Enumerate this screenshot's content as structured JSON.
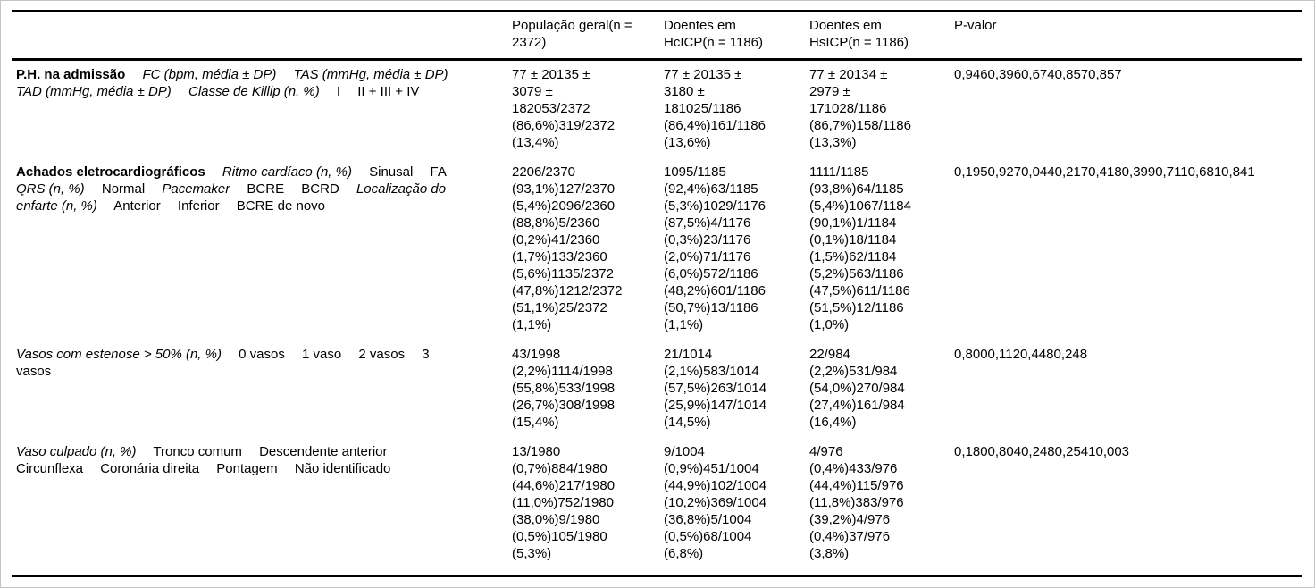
{
  "table": {
    "header": {
      "row_label_column": "",
      "columns": [
        "População geral(n = 2372)",
        "Doentes em HcICP(n = 1186)",
        "Doentes em HsICP(n = 1186)",
        "P-valor"
      ]
    },
    "rows": [
      {
        "label_segments": [
          {
            "text": "P.H. na admissão",
            "style": "bold"
          },
          {
            "text": "FC (bpm, média ± DP)",
            "style": "italic"
          },
          {
            "text": "TAS (mmHg, média ± DP)",
            "style": "italic"
          },
          {
            "text": "TAD (mmHg, média ± DP)",
            "style": "italic"
          },
          {
            "text": "Classe de Killip (n, %)",
            "style": "italic"
          },
          {
            "text": "I",
            "style": "normal"
          },
          {
            "text": "II + III + IV",
            "style": "normal"
          }
        ],
        "cells": [
          "77 ± 20135 ± 3079 ± 182053/2372 (86,6%)319/2372 (13,4%)",
          "77 ± 20135 ± 3180 ± 181025/1186 (86,4%)161/1186 (13,6%)",
          "77 ± 20134 ± 2979 ± 171028/1186 (86,7%)158/1186 (13,3%)",
          "0,9460,3960,6740,8570,857"
        ]
      },
      {
        "label_segments": [
          {
            "text": "Achados eletrocardiográficos",
            "style": "bold"
          },
          {
            "text": "Ritmo cardíaco (n, %)",
            "style": "italic"
          },
          {
            "text": "Sinusal",
            "style": "normal"
          },
          {
            "text": "FA",
            "style": "normal"
          },
          {
            "text": "QRS (n, %)",
            "style": "italic"
          },
          {
            "text": "Normal",
            "style": "normal"
          },
          {
            "text": "Pacemaker",
            "style": "italic"
          },
          {
            "text": "BCRE",
            "style": "normal"
          },
          {
            "text": "BCRD",
            "style": "normal"
          },
          {
            "text": "Localização do enfarte (n, %)",
            "style": "italic"
          },
          {
            "text": "Anterior",
            "style": "normal"
          },
          {
            "text": "Inferior",
            "style": "normal"
          },
          {
            "text": "BCRE de novo",
            "style": "normal"
          }
        ],
        "cells": [
          "2206/2370 (93,1%)127/2370 (5,4%)2096/2360 (88,8%)5/2360 (0,2%)41/2360 (1,7%)133/2360 (5,6%)1135/2372 (47,8%)1212/2372 (51,1%)25/2372 (1,1%)",
          "1095/1185 (92,4%)63/1185 (5,3%)1029/1176 (87,5%)4/1176 (0,3%)23/1176 (2,0%)71/1176 (6,0%)572/1186 (48,2%)601/1186 (50,7%)13/1186 (1,1%)",
          "1111/1185 (93,8%)64/1185 (5,4%)1067/1184 (90,1%)1/1184 (0,1%)18/1184 (1,5%)62/1184 (5,2%)563/1186 (47,5%)611/1186 (51,5%)12/1186 (1,0%)",
          "0,1950,9270,0440,2170,4180,3990,7110,6810,841"
        ]
      },
      {
        "label_segments": [
          {
            "text": "Vasos com estenose > 50% (n, %)",
            "style": "italic"
          },
          {
            "text": "0 vasos",
            "style": "normal"
          },
          {
            "text": "1 vaso",
            "style": "normal"
          },
          {
            "text": "2 vasos",
            "style": "normal"
          },
          {
            "text": "3 vasos",
            "style": "normal"
          }
        ],
        "cells": [
          "43/1998 (2,2%)1114/1998 (55,8%)533/1998 (26,7%)308/1998 (15,4%)",
          "21/1014 (2,1%)583/1014 (57,5%)263/1014 (25,9%)147/1014 (14,5%)",
          "22/984 (2,2%)531/984 (54,0%)270/984 (27,4%)161/984 (16,4%)",
          "0,8000,1120,4480,248"
        ]
      },
      {
        "label_segments": [
          {
            "text": "Vaso culpado (n, %)",
            "style": "italic"
          },
          {
            "text": "Tronco comum",
            "style": "normal"
          },
          {
            "text": "Descendente anterior",
            "style": "normal"
          },
          {
            "text": "Circunflexa",
            "style": "normal"
          },
          {
            "text": "Coronária direita",
            "style": "normal"
          },
          {
            "text": "Pontagem",
            "style": "normal"
          },
          {
            "text": "Não identificado",
            "style": "normal"
          }
        ],
        "cells": [
          "13/1980 (0,7%)884/1980 (44,6%)217/1980 (11,0%)752/1980 (38,0%)9/1980 (0,5%)105/1980 (5,3%)",
          "9/1004 (0,9%)451/1004 (44,9%)102/1004 (10,2%)369/1004 (36,8%)5/1004 (0,5%)68/1004 (6,8%)",
          "4/976 (0,4%)433/976 (44,4%)115/976 (11,8%)383/976 (39,2%)4/976 (0,4%)37/976 (3,8%)",
          "0,1800,8040,2480,25410,003"
        ]
      }
    ]
  }
}
